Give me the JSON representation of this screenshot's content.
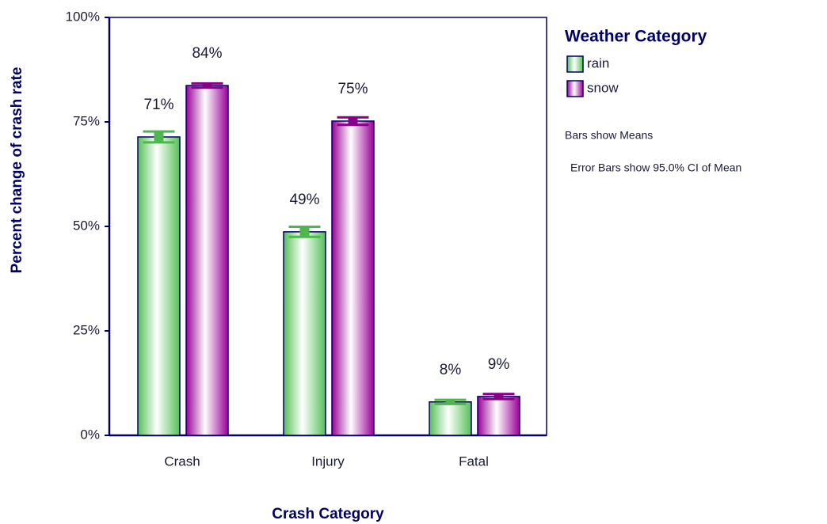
{
  "chart_data": {
    "type": "bar",
    "x_label": "Crash Category",
    "y_label": "Percent change of crash rate",
    "legend_title": "Weather Category",
    "notes": [
      "Bars show Means",
      "Error Bars show 95.0% CI of Mean"
    ],
    "categories": [
      "Crash",
      "Injury",
      "Fatal"
    ],
    "series": [
      {
        "name": "rain",
        "color": "#55c055",
        "error_color": "#4cb84c",
        "values": [
          71.4,
          48.7,
          8.0
        ],
        "value_labels": [
          "71%",
          "49%",
          "8%"
        ],
        "errors": [
          1.3,
          1.2,
          0.5
        ]
      },
      {
        "name": "snow",
        "color": "#990099",
        "error_color": "#880088",
        "values": [
          83.7,
          75.2,
          9.3
        ],
        "value_labels": [
          "84%",
          "75%",
          "9%"
        ],
        "errors": [
          0.5,
          0.9,
          0.6
        ]
      }
    ],
    "ylim": [
      0,
      100
    ],
    "yticks": [
      {
        "value": 0,
        "label": "0%"
      },
      {
        "value": 25,
        "label": "25%"
      },
      {
        "value": 50,
        "label": "50%"
      },
      {
        "value": 75,
        "label": "75%"
      },
      {
        "value": 100,
        "label": "100%"
      }
    ],
    "grid": false,
    "legend": "right"
  }
}
